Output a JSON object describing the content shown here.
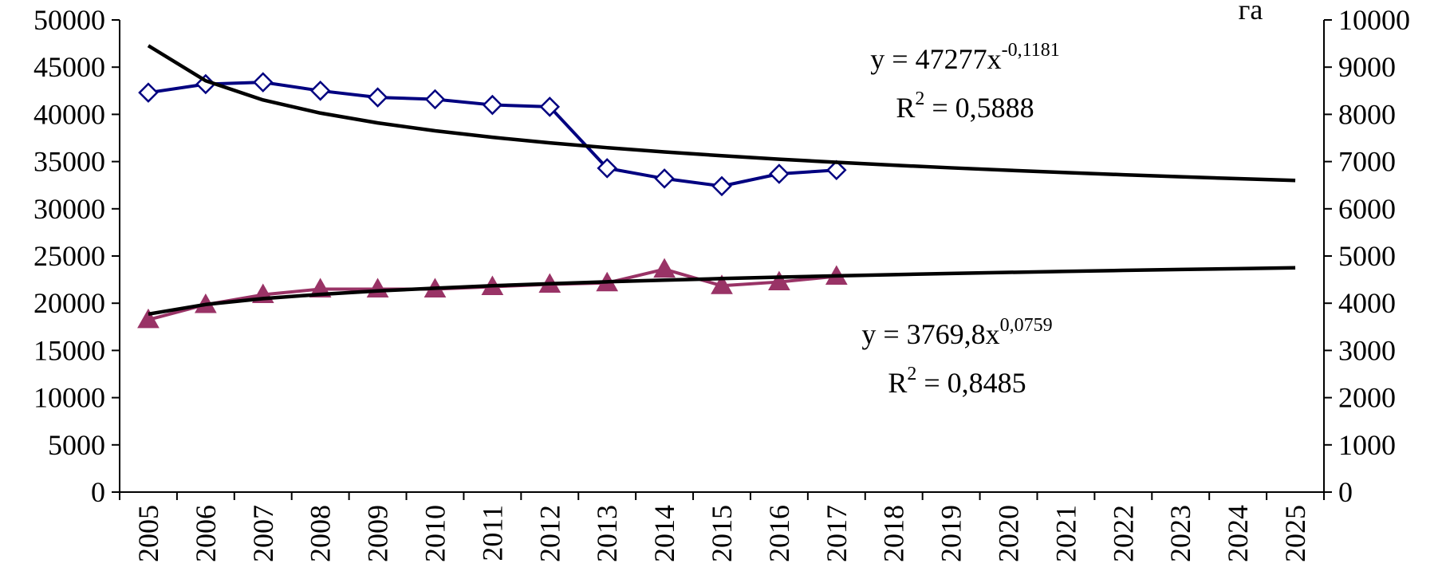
{
  "chart_data": {
    "type": "line",
    "categories": [
      "2005",
      "2006",
      "2007",
      "2008",
      "2009",
      "2010",
      "2011",
      "2012",
      "2013",
      "2014",
      "2015",
      "2016",
      "2017",
      "2018",
      "2019",
      "2020",
      "2021",
      "2022",
      "2023",
      "2024",
      "2025"
    ],
    "ylim": [
      0,
      50000
    ],
    "yticks": [
      0,
      5000,
      10000,
      15000,
      20000,
      25000,
      30000,
      35000,
      40000,
      45000,
      50000
    ],
    "y2lim": [
      0,
      10000
    ],
    "y2ticks": [
      0,
      1000,
      2000,
      3000,
      4000,
      5000,
      6000,
      7000,
      8000,
      9000,
      10000
    ],
    "y2_label": "га",
    "series": [
      {
        "color": "#000080",
        "marker": "diamond",
        "values": [
          42300,
          43200,
          43400,
          42500,
          41800,
          41600,
          41000,
          40800,
          34300,
          33200,
          32400,
          33700,
          34100,
          null,
          null,
          null,
          null,
          null,
          null,
          null,
          null
        ]
      },
      {
        "color": "#000000",
        "values": [
          47277,
          43560,
          41525,
          40138,
          39093,
          38261,
          37571,
          36981,
          36470,
          36020,
          35619,
          35256,
          34925,
          34617,
          34338,
          34078,
          33836,
          33605,
          33393,
          33189,
          32998
        ]
      },
      {
        "color": "#993366",
        "marker": "triangle",
        "axis": "y2",
        "values": [
          3650,
          3970,
          4180,
          4300,
          4300,
          4300,
          4350,
          4400,
          4430,
          4720,
          4370,
          4450,
          4570,
          null,
          null,
          null,
          null,
          null,
          null,
          null,
          null
        ]
      },
      {
        "color": "#000000",
        "axis": "y2",
        "values": [
          3770,
          3973,
          4098,
          4188,
          4260,
          4319,
          4370,
          4414,
          4454,
          4490,
          4522,
          4552,
          4580,
          4606,
          4630,
          4653,
          4674,
          4695,
          4714,
          4732,
          4750
        ]
      }
    ],
    "annotations": [
      {
        "base": "y = 47277x",
        "sup": "-0,1181"
      },
      {
        "base": "R",
        "sup": "2",
        "tail": " = 0,5888"
      },
      {
        "base": "y = 3769,8x",
        "sup": "0,0759"
      },
      {
        "base": "R",
        "sup": "2",
        "tail": " = 0,8485"
      }
    ]
  }
}
